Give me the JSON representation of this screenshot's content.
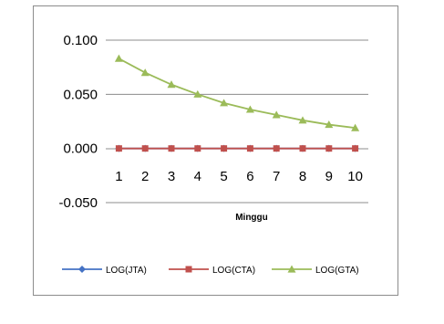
{
  "chart_data": {
    "type": "line",
    "title": "",
    "xlabel": "Minggu",
    "ylabel": "",
    "categories": [
      "1",
      "2",
      "3",
      "4",
      "5",
      "6",
      "7",
      "8",
      "9",
      "10"
    ],
    "ylim": [
      -0.05,
      0.1
    ],
    "yticks": [
      -0.05,
      0,
      0.05,
      0.1
    ],
    "ytick_labels": [
      "-0.050",
      "0.000",
      "0.050",
      "0.100"
    ],
    "grid": true,
    "legend_position": "bottom",
    "series": [
      {
        "name": "LOG(JTA)",
        "color": "#4472c4",
        "marker": "diamond",
        "values": [
          0,
          0,
          0,
          0,
          0,
          0,
          0,
          0,
          0,
          0
        ]
      },
      {
        "name": "LOG(CTA)",
        "color": "#c0504d",
        "marker": "square",
        "values": [
          0,
          0,
          0,
          0,
          0,
          0,
          0,
          0,
          0,
          0
        ]
      },
      {
        "name": "LOG(GTA)",
        "color": "#9bbb59",
        "marker": "triangle",
        "values": [
          0.083,
          0.07,
          0.059,
          0.05,
          0.042,
          0.036,
          0.031,
          0.026,
          0.022,
          0.019
        ]
      }
    ]
  }
}
